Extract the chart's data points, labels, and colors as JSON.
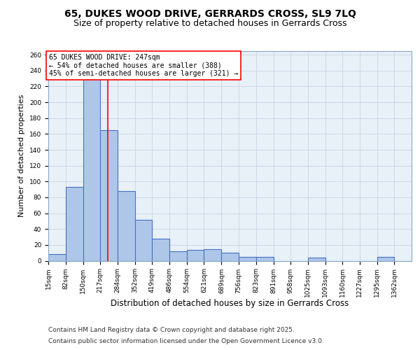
{
  "title1": "65, DUKES WOOD DRIVE, GERRARDS CROSS, SL9 7LQ",
  "title2": "Size of property relative to detached houses in Gerrards Cross",
  "xlabel": "Distribution of detached houses by size in Gerrards Cross",
  "ylabel": "Number of detached properties",
  "bar_edges": [
    15,
    82,
    150,
    217,
    284,
    352,
    419,
    486,
    554,
    621,
    689,
    756,
    823,
    891,
    958,
    1025,
    1093,
    1160,
    1227,
    1295,
    1362
  ],
  "bar_heights": [
    8,
    93,
    230,
    165,
    88,
    52,
    28,
    12,
    14,
    15,
    10,
    5,
    5,
    0,
    0,
    4,
    0,
    0,
    0,
    5,
    0
  ],
  "bar_color": "#aec6e8",
  "bar_edgecolor": "#4472c4",
  "bar_linewidth": 0.8,
  "vline_x": 247,
  "vline_color": "red",
  "vline_linewidth": 1.2,
  "annotation_text": "65 DUKES WOOD DRIVE: 247sqm\n← 54% of detached houses are smaller (388)\n45% of semi-detached houses are larger (321) →",
  "annotation_fontsize": 7.0,
  "annotation_box_color": "white",
  "annotation_box_edgecolor": "red",
  "tick_labels": [
    "15sqm",
    "82sqm",
    "150sqm",
    "217sqm",
    "284sqm",
    "352sqm",
    "419sqm",
    "486sqm",
    "554sqm",
    "621sqm",
    "689sqm",
    "756sqm",
    "823sqm",
    "891sqm",
    "958sqm",
    "1025sqm",
    "1093sqm",
    "1160sqm",
    "1227sqm",
    "1295sqm",
    "1362sqm"
  ],
  "ylim": [
    0,
    265
  ],
  "yticks": [
    0,
    20,
    40,
    60,
    80,
    100,
    120,
    140,
    160,
    180,
    200,
    220,
    240,
    260
  ],
  "grid_color": "#d0d8e8",
  "bg_color": "#e8f0f8",
  "footer1": "Contains HM Land Registry data © Crown copyright and database right 2025.",
  "footer2": "Contains public sector information licensed under the Open Government Licence v3.0.",
  "title1_fontsize": 10,
  "title2_fontsize": 9,
  "xlabel_fontsize": 8.5,
  "ylabel_fontsize": 8,
  "tick_fontsize": 6.5,
  "footer_fontsize": 6.5
}
